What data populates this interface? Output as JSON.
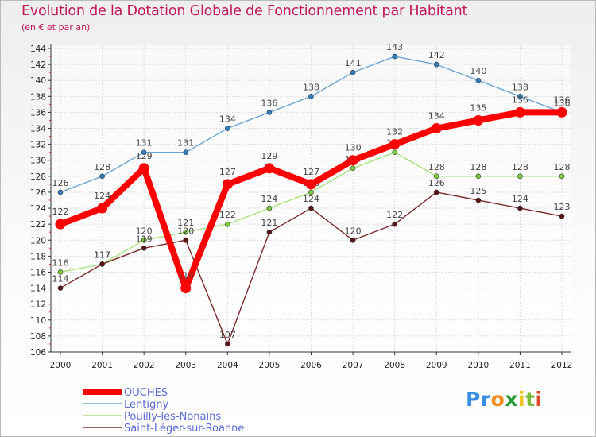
{
  "chart_data": {
    "type": "line",
    "title": "Evolution de la Dotation Globale de Fonctionnement par Habitant",
    "subtitle": "(en € et par an)",
    "x": [
      "2000",
      "2001",
      "2002",
      "2003",
      "2004",
      "2005",
      "2006",
      "2007",
      "2008",
      "2009",
      "2010",
      "2011",
      "2012"
    ],
    "ylim": [
      106,
      144
    ],
    "yticks": [
      106,
      108,
      110,
      112,
      114,
      116,
      118,
      120,
      122,
      124,
      126,
      128,
      130,
      132,
      134,
      136,
      138,
      140,
      142,
      144
    ],
    "series": [
      {
        "name": "Lentigny",
        "color": "#6aa5d4",
        "marker": "#2f7fc4",
        "values": [
          126,
          128,
          131,
          131,
          134,
          136,
          138,
          141,
          143,
          142,
          140,
          138,
          136
        ]
      },
      {
        "name": "Pouilly-les-Nonains",
        "color": "#a6e27a",
        "marker": "#7ccd3b",
        "values": [
          116,
          117,
          120,
          121,
          122,
          124,
          126,
          129,
          131,
          128,
          128,
          128,
          128
        ]
      },
      {
        "name": "Saint-Léger-sur-Roanne",
        "color": "#7a2a2a",
        "marker": "#5a1414",
        "values": [
          114,
          117,
          119,
          120,
          107,
          121,
          124,
          120,
          122,
          126,
          125,
          124,
          123
        ]
      },
      {
        "name": "OUCHES",
        "color": "#ff0000",
        "marker": "#ff0000",
        "values": [
          122,
          124,
          129,
          114,
          127,
          129,
          127,
          130,
          132,
          134,
          135,
          136,
          136
        ]
      }
    ]
  },
  "labels": {
    "Lentigny": [
      "126",
      "128",
      "131",
      "131",
      "134",
      "136",
      "138",
      "141",
      "143",
      "142",
      "140",
      "138",
      "136"
    ],
    "Pouilly-les-Nonains": [
      "116",
      "117",
      "120",
      "121",
      "122",
      "124",
      "126",
      "129",
      "131",
      "128",
      "128",
      "128",
      "128"
    ],
    "Saint-Léger-sur-Roanne": [
      "114",
      "117",
      "119",
      "120",
      "107",
      "121",
      "124",
      "120",
      "122",
      "126",
      "125",
      "124",
      "123"
    ],
    "OUCHES": [
      "122",
      "124",
      "129",
      "114",
      "127",
      "129",
      "127",
      "130",
      "132",
      "134",
      "135",
      "136",
      "136"
    ]
  },
  "legend": [
    "OUCHES",
    "Lentigny",
    "Pouilly-les-Nonains",
    "Saint-Léger-sur-Roanne"
  ],
  "logo": {
    "letters": [
      "P",
      "r",
      "o",
      "x",
      "i",
      "t",
      "i"
    ],
    "colors": [
      "#3a8de0",
      "#3a8de0",
      "#f08a1c",
      "#2a9a3a",
      "#f0c21c",
      "#7ab83a",
      "#e0462a"
    ]
  }
}
